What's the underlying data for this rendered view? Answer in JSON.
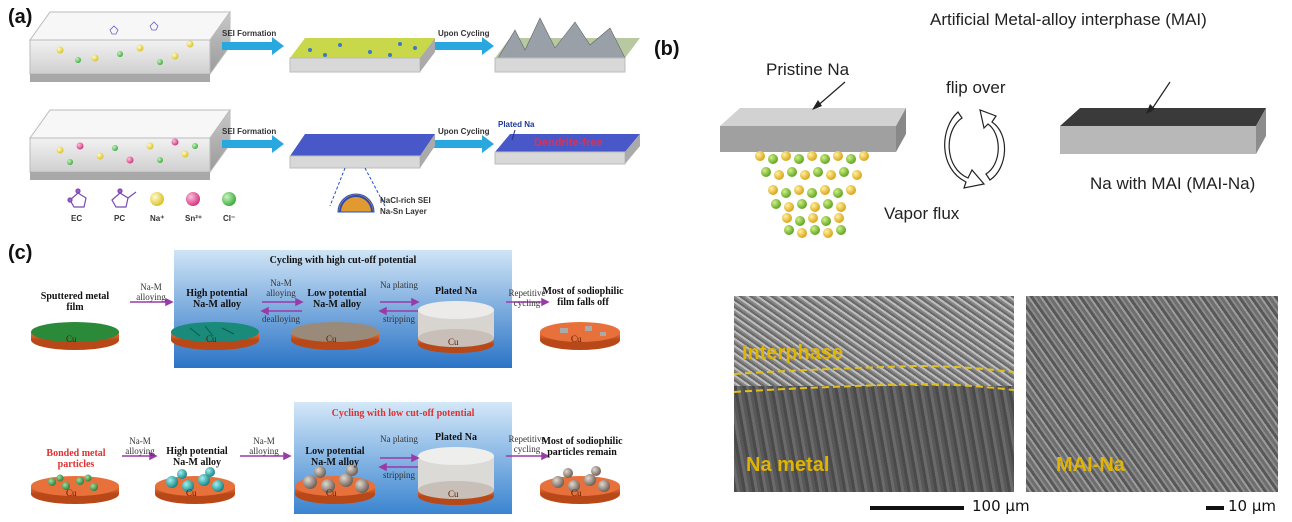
{
  "panel_a": {
    "letter": "(a)",
    "row1": {
      "arrow1": "SEI Formation",
      "arrow2": "Upon Cycling"
    },
    "row2": {
      "arrow1": "SEI Formation",
      "arrow2": "Upon Cycling",
      "plated": "Plated Na",
      "dendrite": "Dendrite-free"
    },
    "callout": [
      "NaCl-rich SEI",
      "Na-Sn Layer"
    ],
    "legend": [
      "EC",
      "PC",
      "Na⁺",
      "Sn²⁺",
      "Cl⁻"
    ],
    "colors": {
      "arrow": "#29a8e0",
      "na": "#e8d63a",
      "sn": "#e0408a",
      "cl": "#4cc24c"
    }
  },
  "panel_b": {
    "letter": "(b)",
    "pristine": "Pristine Na",
    "mai": "Artificial Metal-alloy interphase (MAI)",
    "flip": "flip over",
    "vapor": "Vapor flux",
    "na_with_mai": "Na with MAI (MAI-Na)",
    "sem_left": {
      "label_top": "Interphase",
      "label_bottom": "Na metal",
      "scale": "100 μm"
    },
    "sem_right": {
      "label": "MAI-Na",
      "scale": "10 μm"
    }
  },
  "panel_c": {
    "letter": "(c)",
    "row1": {
      "title": "Cycling with high cut-off potential",
      "start": "Sputtered metal film",
      "arrow1": "Na-M alloying",
      "stage1": "High potential Na-M alloy",
      "arrow2_top": "Na-M alloying",
      "arrow2_bot": "dealloying",
      "stage2": "Low potential Na-M alloy",
      "arrow3_top": "Na plating",
      "arrow3_bot": "stripping",
      "stage3": "Plated Na",
      "arrow4": "Repetitive cycling",
      "end": "Most of sodiophilic film falls off"
    },
    "row2": {
      "title": "Cycling with low cut-off potential",
      "start": "Bonded metal particles",
      "arrow1": "Na-M alloying",
      "stage1": "High potential Na-M alloy",
      "arrow2": "Na-M alloying",
      "stage2": "Low potential Na-M alloy",
      "arrow3_top": "Na plating",
      "arrow3_bot": "stripping",
      "stage3": "Plated Na",
      "arrow4": "Repetitive cycling",
      "end": "Most of sodiophilic particles remain"
    },
    "cu": "Cu"
  }
}
